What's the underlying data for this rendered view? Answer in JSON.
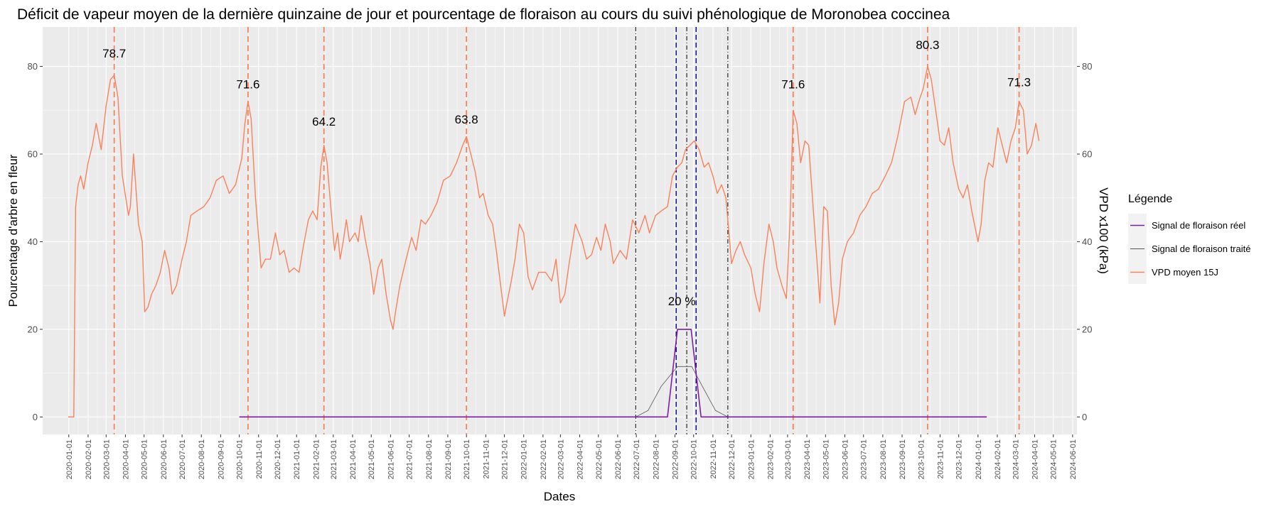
{
  "chart_data": {
    "type": "line",
    "title": "Déficit de vapeur moyen de la dernière quinzaine de jour et pourcentage de floraison au cours du suivi phénologique de Moronobea coccinea",
    "xlabel": "Dates",
    "ylabel": "Pourcentage d'arbre en fleur",
    "ylabel_right": "VPD x100 (kPa)",
    "ylim": [
      -4,
      89
    ],
    "y_ticks": [
      0,
      20,
      40,
      60,
      80
    ],
    "y_tick_labels": [
      "0",
      "20",
      "40",
      "60",
      "80"
    ],
    "x_range": [
      "2019-11-20",
      "2024-06-08"
    ],
    "x_ticks": [
      "2020-01-01",
      "2020-02-01",
      "2020-03-01",
      "2020-04-01",
      "2020-05-01",
      "2020-06-01",
      "2020-07-01",
      "2020-08-01",
      "2020-09-01",
      "2020-10-01",
      "2020-11-01",
      "2020-12-01",
      "2021-01-01",
      "2021-02-01",
      "2021-03-01",
      "2021-04-01",
      "2021-05-01",
      "2021-06-01",
      "2021-07-01",
      "2021-08-01",
      "2021-09-01",
      "2021-10-01",
      "2021-11-01",
      "2021-12-01",
      "2022-01-01",
      "2022-02-01",
      "2022-03-01",
      "2022-04-01",
      "2022-05-01",
      "2022-06-01",
      "2022-07-01",
      "2022-08-01",
      "2022-09-01",
      "2022-10-01",
      "2022-11-01",
      "2022-12-01",
      "2023-01-01",
      "2023-02-01",
      "2023-03-01",
      "2023-04-01",
      "2023-05-01",
      "2023-06-01",
      "2023-07-01",
      "2023-08-01",
      "2023-09-01",
      "2023-10-01",
      "2023-11-01",
      "2023-12-01",
      "2024-01-01",
      "2024-02-01",
      "2024-03-01",
      "2024-04-01",
      "2024-05-01",
      "2024-06-01"
    ],
    "grid": true,
    "legend_position": "right",
    "legend_title": "Légende",
    "series": [
      {
        "name": "Signal de floraison réel",
        "color": "#7B1FA2",
        "points": [
          [
            "2020-10-01",
            0
          ],
          [
            "2022-08-20",
            0
          ],
          [
            "2022-09-05",
            20
          ],
          [
            "2022-09-27",
            20
          ],
          [
            "2022-10-13",
            0
          ],
          [
            "2024-01-15",
            0
          ]
        ]
      },
      {
        "name": "Signal de floraison traité",
        "color": "#555555",
        "points": [
          [
            "2022-06-30",
            0
          ],
          [
            "2022-07-20",
            1.5
          ],
          [
            "2022-08-10",
            7
          ],
          [
            "2022-09-05",
            11.5
          ],
          [
            "2022-09-28",
            11.5
          ],
          [
            "2022-10-15",
            7
          ],
          [
            "2022-11-05",
            1.5
          ],
          [
            "2022-11-25",
            0
          ]
        ]
      },
      {
        "name": "VPD moyen 15J",
        "color": "#F9825B",
        "points": [
          [
            "2019-12-31",
            0
          ],
          [
            "2020-01-09",
            0
          ],
          [
            "2020-01-12",
            48
          ],
          [
            "2020-01-16",
            53
          ],
          [
            "2020-01-20",
            55
          ],
          [
            "2020-01-25",
            52
          ],
          [
            "2020-02-01",
            58
          ],
          [
            "2020-02-08",
            62
          ],
          [
            "2020-02-14",
            67
          ],
          [
            "2020-02-22",
            61
          ],
          [
            "2020-03-01",
            71
          ],
          [
            "2020-03-08",
            77
          ],
          [
            "2020-03-14",
            78
          ],
          [
            "2020-03-20",
            73
          ],
          [
            "2020-03-27",
            55
          ],
          [
            "2020-04-06",
            46
          ],
          [
            "2020-04-09",
            48
          ],
          [
            "2020-04-14",
            60
          ],
          [
            "2020-04-22",
            44
          ],
          [
            "2020-04-28",
            40
          ],
          [
            "2020-05-02",
            24
          ],
          [
            "2020-05-07",
            25
          ],
          [
            "2020-05-13",
            28
          ],
          [
            "2020-05-20",
            30
          ],
          [
            "2020-05-27",
            33
          ],
          [
            "2020-06-03",
            38
          ],
          [
            "2020-06-10",
            34
          ],
          [
            "2020-06-15",
            28
          ],
          [
            "2020-06-22",
            30
          ],
          [
            "2020-07-01",
            36
          ],
          [
            "2020-07-08",
            40
          ],
          [
            "2020-07-15",
            46
          ],
          [
            "2020-07-25",
            47
          ],
          [
            "2020-08-05",
            48
          ],
          [
            "2020-08-15",
            50
          ],
          [
            "2020-08-25",
            54
          ],
          [
            "2020-09-05",
            55
          ],
          [
            "2020-09-15",
            51
          ],
          [
            "2020-09-25",
            53
          ],
          [
            "2020-10-05",
            59
          ],
          [
            "2020-10-10",
            67
          ],
          [
            "2020-10-15",
            72
          ],
          [
            "2020-10-20",
            68
          ],
          [
            "2020-10-27",
            50
          ],
          [
            "2020-11-05",
            34
          ],
          [
            "2020-11-12",
            36
          ],
          [
            "2020-11-20",
            36
          ],
          [
            "2020-11-28",
            42
          ],
          [
            "2020-12-05",
            37
          ],
          [
            "2020-12-12",
            38
          ],
          [
            "2020-12-20",
            33
          ],
          [
            "2020-12-28",
            34
          ],
          [
            "2021-01-05",
            33
          ],
          [
            "2021-01-12",
            39
          ],
          [
            "2021-01-20",
            45
          ],
          [
            "2021-01-27",
            47
          ],
          [
            "2021-02-03",
            45
          ],
          [
            "2021-02-09",
            57
          ],
          [
            "2021-02-14",
            62
          ],
          [
            "2021-02-19",
            58
          ],
          [
            "2021-02-25",
            48
          ],
          [
            "2021-03-03",
            38
          ],
          [
            "2021-03-08",
            42
          ],
          [
            "2021-03-12",
            36
          ],
          [
            "2021-03-17",
            40
          ],
          [
            "2021-03-22",
            45
          ],
          [
            "2021-03-27",
            40
          ],
          [
            "2021-04-05",
            42
          ],
          [
            "2021-04-10",
            40
          ],
          [
            "2021-04-15",
            46
          ],
          [
            "2021-04-22",
            40
          ],
          [
            "2021-04-29",
            35
          ],
          [
            "2021-05-05",
            28
          ],
          [
            "2021-05-12",
            34
          ],
          [
            "2021-05-18",
            36
          ],
          [
            "2021-05-25",
            28
          ],
          [
            "2021-06-01",
            22
          ],
          [
            "2021-06-05",
            20
          ],
          [
            "2021-06-09",
            24
          ],
          [
            "2021-06-16",
            30
          ],
          [
            "2021-06-26",
            36
          ],
          [
            "2021-07-05",
            41
          ],
          [
            "2021-07-12",
            38
          ],
          [
            "2021-07-20",
            45
          ],
          [
            "2021-07-27",
            44
          ],
          [
            "2021-08-05",
            46
          ],
          [
            "2021-08-15",
            49
          ],
          [
            "2021-08-25",
            54
          ],
          [
            "2021-09-05",
            55
          ],
          [
            "2021-09-15",
            58
          ],
          [
            "2021-09-25",
            62
          ],
          [
            "2021-10-01",
            64
          ],
          [
            "2021-10-08",
            60
          ],
          [
            "2021-10-15",
            56
          ],
          [
            "2021-10-22",
            50
          ],
          [
            "2021-10-28",
            51
          ],
          [
            "2021-11-05",
            46
          ],
          [
            "2021-11-12",
            44
          ],
          [
            "2021-11-18",
            38
          ],
          [
            "2021-11-25",
            30
          ],
          [
            "2021-12-01",
            23
          ],
          [
            "2021-12-05",
            26
          ],
          [
            "2021-12-12",
            31
          ],
          [
            "2021-12-18",
            36
          ],
          [
            "2021-12-25",
            44
          ],
          [
            "2022-01-01",
            42
          ],
          [
            "2022-01-08",
            32
          ],
          [
            "2022-01-15",
            29
          ],
          [
            "2022-01-25",
            33
          ],
          [
            "2022-02-05",
            33
          ],
          [
            "2022-02-15",
            31
          ],
          [
            "2022-02-22",
            36
          ],
          [
            "2022-03-01",
            26
          ],
          [
            "2022-03-08",
            28
          ],
          [
            "2022-03-15",
            35
          ],
          [
            "2022-03-25",
            44
          ],
          [
            "2022-04-05",
            40
          ],
          [
            "2022-04-12",
            36
          ],
          [
            "2022-04-20",
            37
          ],
          [
            "2022-04-28",
            41
          ],
          [
            "2022-05-05",
            38
          ],
          [
            "2022-05-12",
            44
          ],
          [
            "2022-05-20",
            40
          ],
          [
            "2022-05-25",
            35
          ],
          [
            "2022-06-05",
            38
          ],
          [
            "2022-06-15",
            36
          ],
          [
            "2022-06-25",
            45
          ],
          [
            "2022-07-05",
            42
          ],
          [
            "2022-07-15",
            46
          ],
          [
            "2022-07-22",
            42
          ],
          [
            "2022-08-01",
            46
          ],
          [
            "2022-08-10",
            47
          ],
          [
            "2022-08-20",
            48
          ],
          [
            "2022-08-28",
            55
          ],
          [
            "2022-09-05",
            57
          ],
          [
            "2022-09-12",
            58
          ],
          [
            "2022-09-18",
            61
          ],
          [
            "2022-09-25",
            62
          ],
          [
            "2022-10-02",
            63
          ],
          [
            "2022-10-10",
            61
          ],
          [
            "2022-10-18",
            57
          ],
          [
            "2022-10-25",
            58
          ],
          [
            "2022-11-01",
            55
          ],
          [
            "2022-11-08",
            51
          ],
          [
            "2022-11-15",
            53
          ],
          [
            "2022-11-22",
            50
          ],
          [
            "2022-12-01",
            35
          ],
          [
            "2022-12-08",
            38
          ],
          [
            "2022-12-15",
            40
          ],
          [
            "2022-12-22",
            37
          ],
          [
            "2023-01-01",
            34
          ],
          [
            "2023-01-08",
            28
          ],
          [
            "2023-01-15",
            24
          ],
          [
            "2023-01-22",
            35
          ],
          [
            "2023-01-30",
            44
          ],
          [
            "2023-02-06",
            40
          ],
          [
            "2023-02-12",
            34
          ],
          [
            "2023-02-20",
            30
          ],
          [
            "2023-02-27",
            27
          ],
          [
            "2023-03-05",
            45
          ],
          [
            "2023-03-10",
            70
          ],
          [
            "2023-03-16",
            67
          ],
          [
            "2023-03-22",
            58
          ],
          [
            "2023-03-29",
            63
          ],
          [
            "2023-04-04",
            62
          ],
          [
            "2023-04-10",
            50
          ],
          [
            "2023-04-16",
            38
          ],
          [
            "2023-04-22",
            26
          ],
          [
            "2023-04-28",
            48
          ],
          [
            "2023-05-04",
            47
          ],
          [
            "2023-05-10",
            30
          ],
          [
            "2023-05-16",
            21
          ],
          [
            "2023-05-22",
            26
          ],
          [
            "2023-05-28",
            36
          ],
          [
            "2023-06-05",
            40
          ],
          [
            "2023-06-15",
            42
          ],
          [
            "2023-06-25",
            46
          ],
          [
            "2023-07-05",
            48
          ],
          [
            "2023-07-15",
            51
          ],
          [
            "2023-07-25",
            52
          ],
          [
            "2023-08-05",
            55
          ],
          [
            "2023-08-15",
            58
          ],
          [
            "2023-08-25",
            64
          ],
          [
            "2023-09-05",
            72
          ],
          [
            "2023-09-15",
            73
          ],
          [
            "2023-09-22",
            69
          ],
          [
            "2023-09-28",
            72
          ],
          [
            "2023-10-05",
            75
          ],
          [
            "2023-10-12",
            80
          ],
          [
            "2023-10-18",
            77
          ],
          [
            "2023-10-25",
            70
          ],
          [
            "2023-11-01",
            63
          ],
          [
            "2023-11-08",
            62
          ],
          [
            "2023-11-15",
            66
          ],
          [
            "2023-11-22",
            58
          ],
          [
            "2023-12-01",
            52
          ],
          [
            "2023-12-08",
            50
          ],
          [
            "2023-12-15",
            53
          ],
          [
            "2023-12-22",
            47
          ],
          [
            "2024-01-01",
            40
          ],
          [
            "2024-01-06",
            44
          ],
          [
            "2024-01-12",
            54
          ],
          [
            "2024-01-18",
            58
          ],
          [
            "2024-01-25",
            57
          ],
          [
            "2024-02-02",
            66
          ],
          [
            "2024-02-09",
            62
          ],
          [
            "2024-02-16",
            58
          ],
          [
            "2024-02-23",
            63
          ],
          [
            "2024-03-01",
            66
          ],
          [
            "2024-03-07",
            72
          ],
          [
            "2024-03-14",
            70
          ],
          [
            "2024-03-20",
            60
          ],
          [
            "2024-03-27",
            62
          ],
          [
            "2024-04-03",
            67
          ],
          [
            "2024-04-08",
            63
          ]
        ]
      }
    ],
    "reference_lines": {
      "peak_color": "#F9825B",
      "flowering_color": "#000080",
      "window_color": "#000000",
      "peaks": [
        {
          "date": "2020-03-14",
          "label": "78.7",
          "label_y": 82
        },
        {
          "date": "2020-10-15",
          "label": "71.6",
          "label_y": 75
        },
        {
          "date": "2021-02-14",
          "label": "64.2",
          "label_y": 66.5
        },
        {
          "date": "2021-10-01",
          "label": "63.8",
          "label_y": 67
        },
        {
          "date": "2023-03-10",
          "label": "71.6",
          "label_y": 75
        },
        {
          "date": "2023-10-12",
          "label": "80.3",
          "label_y": 84
        },
        {
          "date": "2024-03-07",
          "label": "71.3",
          "label_y": 75.5
        }
      ],
      "flowering_start": "2022-09-03",
      "flowering_end_peak": "2022-10-05",
      "window": [
        "2022-06-30",
        "2022-09-20",
        "2022-11-25"
      ],
      "flowering_label": {
        "date": "2022-09-12",
        "label": "20 %",
        "label_y": 25.5
      }
    }
  }
}
